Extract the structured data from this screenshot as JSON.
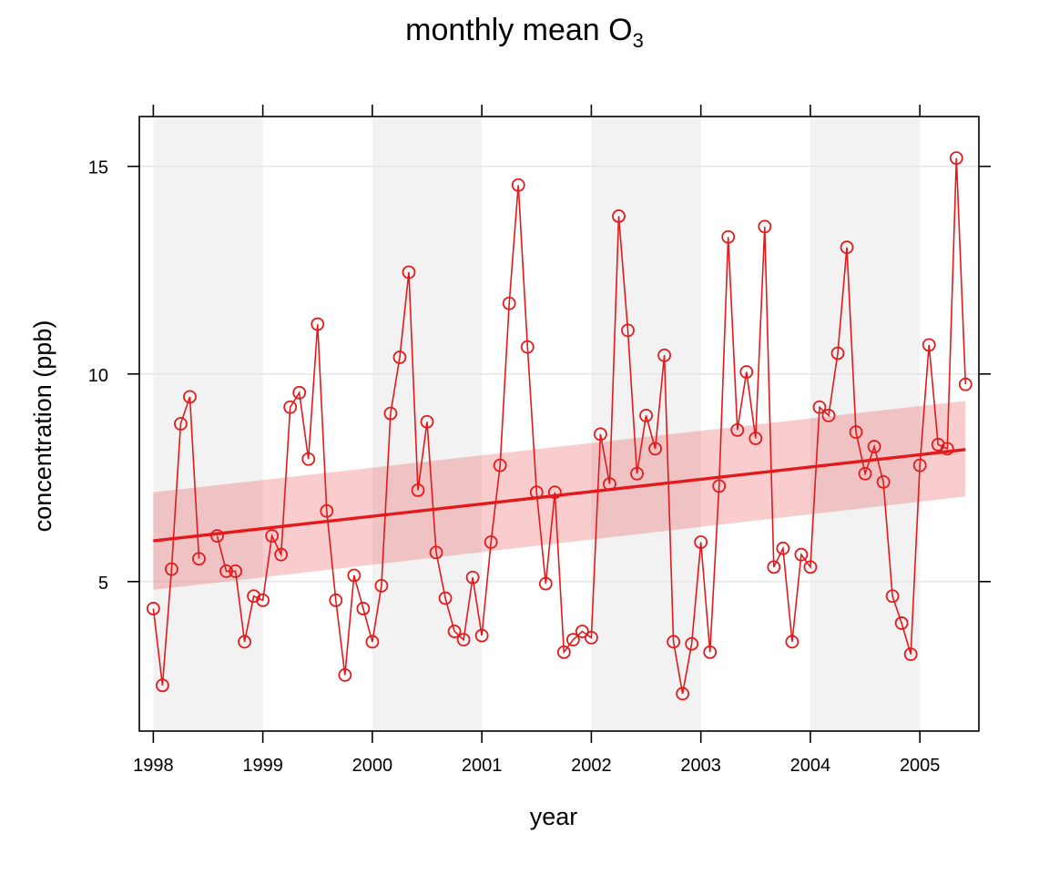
{
  "chart_data": {
    "type": "line",
    "title": "monthly mean O",
    "title_subscript": "3",
    "xlabel": "year",
    "ylabel": "concentration (ppb)",
    "x_ticks": [
      "1998",
      "1999",
      "2000",
      "2001",
      "2002",
      "2003",
      "2004",
      "2005"
    ],
    "y_ticks": [
      5,
      10,
      15
    ],
    "xlim": [
      "1997-11-15",
      "2005-07-15"
    ],
    "ylim": [
      1.4,
      16.2
    ],
    "grid": "horizontal",
    "shaded_years": [
      "1998",
      "2000",
      "2002",
      "2004"
    ],
    "colors": {
      "series": "#e31a1c",
      "band": "#f2f2f2",
      "grid": "#e3e3e3"
    },
    "series": [
      {
        "marker": "open-circle",
        "x": [
          "1998-01",
          "1998-02",
          "1998-03",
          "1998-04",
          "1998-05",
          "1998-06",
          "1998-07",
          "1998-08",
          "1998-09",
          "1998-10",
          "1998-11",
          "1998-12",
          "1999-01",
          "1999-02",
          "1999-03",
          "1999-04",
          "1999-05",
          "1999-06",
          "1999-07",
          "1999-08",
          "1999-09",
          "1999-10",
          "1999-11",
          "1999-12",
          "2000-01",
          "2000-02",
          "2000-03",
          "2000-04",
          "2000-05",
          "2000-06",
          "2000-07",
          "2000-08",
          "2000-09",
          "2000-10",
          "2000-11",
          "2000-12",
          "2001-01",
          "2001-02",
          "2001-03",
          "2001-04",
          "2001-05",
          "2001-06",
          "2001-07",
          "2001-08",
          "2001-09",
          "2001-10",
          "2001-11",
          "2001-12",
          "2002-01",
          "2002-02",
          "2002-03",
          "2002-04",
          "2002-05",
          "2002-06",
          "2002-07",
          "2002-08",
          "2002-09",
          "2002-10",
          "2002-11",
          "2002-12",
          "2003-01",
          "2003-02",
          "2003-03",
          "2003-04",
          "2003-05",
          "2003-06",
          "2003-07",
          "2003-08",
          "2003-09",
          "2003-10",
          "2003-11",
          "2003-12",
          "2004-01",
          "2004-02",
          "2004-03",
          "2004-04",
          "2004-05",
          "2004-06",
          "2004-07",
          "2004-08",
          "2004-09",
          "2004-10",
          "2004-11",
          "2004-12",
          "2005-01",
          "2005-02",
          "2005-03",
          "2005-04",
          "2005-05",
          "2005-06"
        ],
        "values": [
          4.35,
          2.5,
          5.3,
          8.8,
          9.45,
          5.55,
          null,
          6.1,
          5.25,
          5.25,
          3.55,
          4.65,
          4.55,
          6.1,
          5.65,
          9.2,
          9.55,
          7.95,
          11.2,
          6.7,
          4.55,
          2.75,
          5.15,
          4.35,
          3.55,
          4.9,
          9.05,
          10.4,
          12.45,
          7.2,
          8.85,
          5.7,
          4.6,
          3.8,
          3.6,
          5.1,
          3.7,
          5.95,
          7.8,
          11.7,
          14.55,
          10.65,
          7.15,
          4.95,
          7.15,
          3.3,
          3.6,
          3.8,
          3.65,
          8.55,
          7.35,
          13.8,
          11.05,
          7.6,
          9.0,
          8.2,
          10.45,
          3.55,
          2.3,
          3.5,
          5.95,
          3.3,
          7.3,
          13.3,
          8.65,
          10.05,
          8.45,
          13.55,
          5.35,
          5.8,
          3.55,
          5.65,
          5.35,
          9.2,
          9.0,
          10.5,
          13.05,
          8.6,
          7.6,
          8.25,
          7.4,
          4.65,
          4.0,
          3.25,
          7.8,
          10.7,
          8.3,
          8.2,
          15.2,
          9.75
        ]
      }
    ],
    "trend": {
      "x": [
        "1998-01",
        "2005-06"
      ],
      "values": [
        5.98,
        8.18
      ],
      "ci_lower": [
        4.8,
        7.05
      ],
      "ci_upper": [
        7.15,
        9.35
      ]
    }
  }
}
